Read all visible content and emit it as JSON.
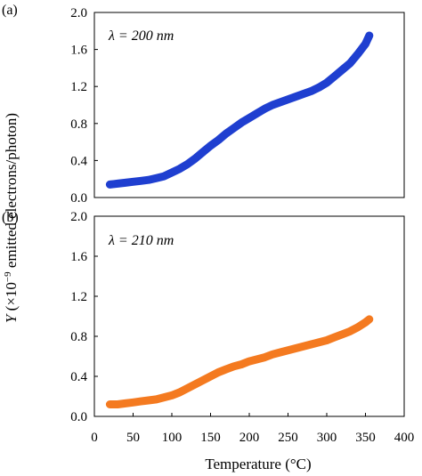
{
  "chart_data": [
    {
      "type": "line",
      "panel_label": "(a)",
      "annotation": "λ = 200 nm",
      "series": [
        {
          "name": "",
          "color": "#1f3fd0",
          "x": [
            20,
            30,
            40,
            50,
            60,
            70,
            80,
            90,
            100,
            110,
            120,
            130,
            140,
            150,
            160,
            170,
            180,
            190,
            200,
            210,
            220,
            230,
            240,
            250,
            260,
            270,
            280,
            290,
            300,
            310,
            320,
            330,
            340,
            350,
            355
          ],
          "y": [
            0.14,
            0.15,
            0.16,
            0.17,
            0.18,
            0.19,
            0.21,
            0.23,
            0.27,
            0.31,
            0.36,
            0.42,
            0.49,
            0.56,
            0.62,
            0.69,
            0.75,
            0.81,
            0.86,
            0.91,
            0.96,
            1.0,
            1.03,
            1.06,
            1.09,
            1.12,
            1.15,
            1.19,
            1.24,
            1.31,
            1.38,
            1.45,
            1.55,
            1.66,
            1.75
          ]
        }
      ],
      "xlim": [
        0,
        400
      ],
      "ylim": [
        0,
        2.0
      ],
      "xticks": [
        0,
        50,
        100,
        150,
        200,
        250,
        300,
        350,
        400
      ],
      "yticks": [
        "0.0",
        "0.4",
        "0.8",
        "1.2",
        "1.6",
        "2.0"
      ]
    },
    {
      "type": "line",
      "panel_label": "(b)",
      "annotation": "λ = 210 nm",
      "series": [
        {
          "name": "",
          "color": "#f47a20",
          "x": [
            20,
            30,
            40,
            50,
            60,
            70,
            80,
            90,
            100,
            110,
            120,
            130,
            140,
            150,
            160,
            170,
            180,
            190,
            200,
            210,
            220,
            230,
            240,
            250,
            260,
            270,
            280,
            290,
            300,
            310,
            320,
            330,
            340,
            350,
            355
          ],
          "y": [
            0.12,
            0.12,
            0.13,
            0.14,
            0.15,
            0.16,
            0.17,
            0.19,
            0.21,
            0.24,
            0.28,
            0.32,
            0.36,
            0.4,
            0.44,
            0.47,
            0.5,
            0.52,
            0.55,
            0.57,
            0.59,
            0.62,
            0.64,
            0.66,
            0.68,
            0.7,
            0.72,
            0.74,
            0.76,
            0.79,
            0.82,
            0.85,
            0.89,
            0.94,
            0.97
          ]
        }
      ],
      "xlim": [
        0,
        400
      ],
      "ylim": [
        0,
        2.0
      ],
      "xticks": [
        0,
        50,
        100,
        150,
        200,
        250,
        300,
        350,
        400
      ],
      "yticks": [
        "0.0",
        "0.4",
        "0.8",
        "1.2",
        "1.6",
        "2.0"
      ]
    }
  ],
  "axes": {
    "ylabel_var": "Y",
    "ylabel_open": " (×10",
    "ylabel_exp": "−9",
    "ylabel_rest": " emitted electrons/photon)",
    "xlabel": "Temperature (°C)"
  }
}
